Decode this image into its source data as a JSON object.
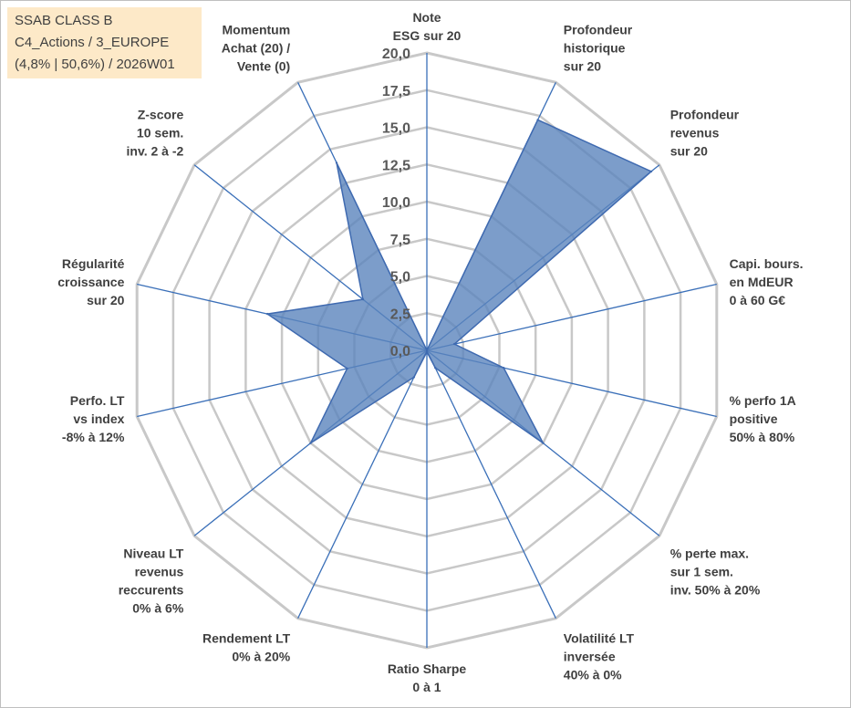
{
  "info": {
    "line1": "SSAB CLASS B",
    "line2": "C4_Actions / 3_EUROPE",
    "line3": "(4,8% | 50,6%) / 2026W01"
  },
  "colors": {
    "fill": "#5b85bd",
    "stroke": "#3f6ab0",
    "grid": "#c8c8c8",
    "spoke": "#3a6fb8"
  },
  "chart_data": {
    "type": "radar",
    "rmax": 20,
    "ticks": [
      "0,0",
      "2,5",
      "5,0",
      "7,5",
      "10,0",
      "12,5",
      "15,0",
      "17,5",
      "20,0"
    ],
    "axes": [
      {
        "label": [
          "Note",
          "ESG sur 20"
        ],
        "value": 0
      },
      {
        "label": [
          "Profondeur",
          "historique",
          "sur 20"
        ],
        "value": 17.2
      },
      {
        "label": [
          "Profondeur",
          "revenus",
          "sur 20"
        ],
        "value": 19.3
      },
      {
        "label": [
          "Capi. bours.",
          "en MdEUR",
          "0 à 60 G€"
        ],
        "value": 1.9
      },
      {
        "label": [
          "% perfo 1A",
          "positive",
          "50% à 80%"
        ],
        "value": 5.3
      },
      {
        "label": [
          "% perte max.",
          "sur 1 sem.",
          "inv. 50% à 20%"
        ],
        "value": 10.0
      },
      {
        "label": [
          "Volatilité LT",
          "inversée",
          "40% à 0%"
        ],
        "value": 1.3
      },
      {
        "label": [
          "Ratio Sharpe",
          "0 à 1"
        ],
        "value": 0.1
      },
      {
        "label": [
          "Rendement LT",
          "0% à 20%"
        ],
        "value": 2.0
      },
      {
        "label": [
          "Niveau LT",
          "revenus",
          "reccurents",
          "0% à 6%"
        ],
        "value": 10.0
      },
      {
        "label": [
          "Perfo. LT",
          "vs index",
          "-8% à 12%"
        ],
        "value": 5.5
      },
      {
        "label": [
          "Régularité",
          "croissance",
          "sur 20"
        ],
        "value": 11.0
      },
      {
        "label": [
          "Z-score",
          "10 sem.",
          "inv. 2 à -2"
        ],
        "value": 5.5
      },
      {
        "label": [
          "Momentum",
          "Achat (20) /",
          "Vente (0)"
        ],
        "value": 14.0
      }
    ]
  }
}
